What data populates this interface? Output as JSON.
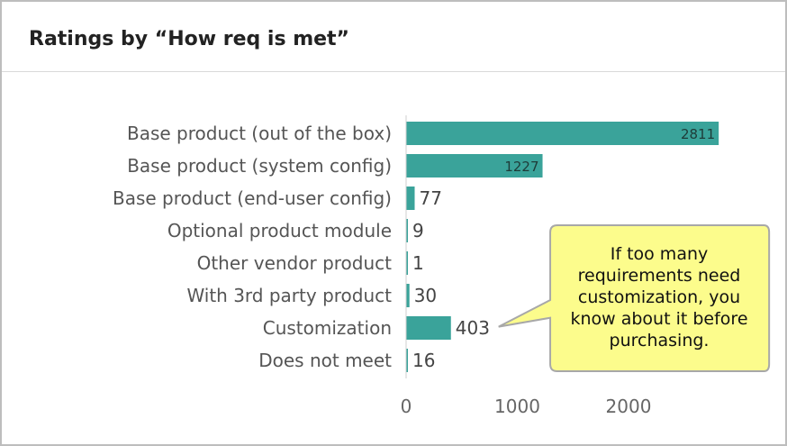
{
  "panel": {
    "title": "Ratings by “How req is met”"
  },
  "chart_data": {
    "type": "bar",
    "orientation": "horizontal",
    "categories": [
      "Base product (out of the box)",
      "Base product (system config)",
      "Base product (end-user config)",
      "Optional product module",
      "Other vendor product",
      "With 3rd party product",
      "Customization",
      "Does not meet"
    ],
    "values": [
      2811,
      1227,
      77,
      9,
      1,
      30,
      403,
      16
    ],
    "xticks": [
      0,
      1000,
      2000
    ],
    "xlim": [
      0,
      3000
    ],
    "grid": false,
    "legend": "none",
    "bar_color": "#3aa39a"
  },
  "callout": {
    "text": "If too many requirements need customization, you know about it before purchasing.",
    "fill": "#fcfc8c",
    "stroke": "#a8a8a8"
  }
}
